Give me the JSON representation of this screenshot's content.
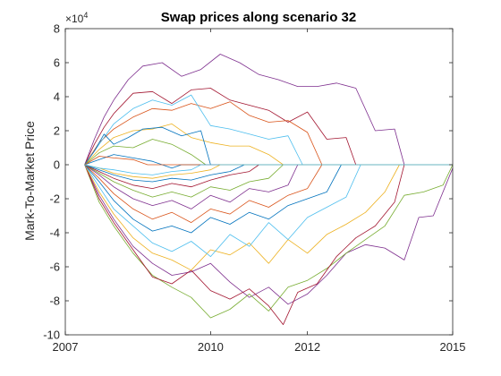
{
  "chart_data": {
    "type": "line",
    "title": "Swap prices along scenario 32",
    "xlabel": "",
    "ylabel": "Mark-To-Market Price",
    "y_exponent_label": "×10",
    "y_exponent_power": "4",
    "y_scale": 10000,
    "xlim": [
      2007,
      2015
    ],
    "ylim": [
      -10,
      8
    ],
    "x_ticks": [
      2007,
      2010,
      2012,
      2015
    ],
    "x_tick_labels": [
      "2007",
      "2010",
      "2012",
      "2015"
    ],
    "y_ticks": [
      -10,
      -8,
      -6,
      -4,
      -2,
      0,
      2,
      4,
      6,
      8
    ],
    "y_tick_labels": [
      "-10",
      "-8",
      "-6",
      "-4",
      "-2",
      "0",
      "2",
      "4",
      "6",
      "8"
    ],
    "grid": false,
    "legend": "none",
    "series": [
      {
        "color": "#7E2F8E",
        "x": [
          2007.4,
          2007.6,
          2007.8,
          2008.0,
          2008.3,
          2008.6,
          2009.0,
          2009.4,
          2009.8,
          2010.2,
          2010.6,
          2011.0,
          2011.4,
          2011.8,
          2012.2,
          2012.6,
          2013.0,
          2013.4,
          2013.8,
          2014.0,
          2014.5,
          2015.0
        ],
        "values": [
          0,
          1.5,
          2.8,
          3.8,
          5.0,
          5.8,
          6.0,
          5.2,
          5.6,
          6.5,
          6.0,
          5.3,
          5.0,
          4.6,
          4.6,
          4.8,
          4.5,
          2.0,
          2.1,
          0,
          0,
          0
        ]
      },
      {
        "color": "#A2142F",
        "x": [
          2007.4,
          2007.6,
          2007.8,
          2008.0,
          2008.4,
          2008.8,
          2009.2,
          2009.6,
          2010.0,
          2010.4,
          2010.8,
          2011.2,
          2011.6,
          2012.0,
          2012.4,
          2012.8,
          2013.0,
          2015.0
        ],
        "values": [
          0,
          1.2,
          2.2,
          3.0,
          4.2,
          4.3,
          3.6,
          4.4,
          4.5,
          3.8,
          3.5,
          3.2,
          2.5,
          3.1,
          1.5,
          1.6,
          0,
          0
        ]
      },
      {
        "color": "#D95319",
        "x": [
          2007.4,
          2007.7,
          2008.0,
          2008.4,
          2008.8,
          2009.2,
          2009.6,
          2010.0,
          2010.4,
          2010.8,
          2011.2,
          2011.6,
          2012.0,
          2012.3,
          2015.0
        ],
        "values": [
          0,
          1.3,
          2.1,
          2.8,
          3.3,
          3.2,
          3.6,
          3.3,
          3.7,
          2.9,
          2.5,
          2.6,
          1.9,
          0,
          0
        ]
      },
      {
        "color": "#4DBEEE",
        "x": [
          2007.4,
          2007.7,
          2008.0,
          2008.4,
          2008.8,
          2009.2,
          2009.6,
          2010.0,
          2010.4,
          2010.8,
          2011.2,
          2011.6,
          2011.9,
          2015.0
        ],
        "values": [
          0,
          1.2,
          2.4,
          3.3,
          3.8,
          3.5,
          4.1,
          2.3,
          2.1,
          1.8,
          1.5,
          1.7,
          0,
          0
        ]
      },
      {
        "color": "#EDB120",
        "x": [
          2007.4,
          2007.7,
          2008.0,
          2008.4,
          2008.8,
          2009.2,
          2009.6,
          2010.0,
          2010.4,
          2010.8,
          2011.2,
          2011.5,
          2015.0
        ],
        "values": [
          0,
          0.9,
          1.6,
          2.0,
          2.1,
          2.4,
          1.6,
          1.3,
          1.1,
          1.1,
          0.6,
          0,
          0
        ]
      },
      {
        "color": "#0072BD",
        "x": [
          2007.4,
          2007.6,
          2007.8,
          2008.0,
          2008.3,
          2008.6,
          2009.0,
          2009.4,
          2009.8,
          2010.0,
          2015.0
        ],
        "values": [
          0,
          0.8,
          1.8,
          1.2,
          1.6,
          2.1,
          2.2,
          1.7,
          2.0,
          0,
          0
        ]
      },
      {
        "color": "#77AC30",
        "x": [
          2007.4,
          2007.7,
          2008.0,
          2008.4,
          2008.8,
          2009.2,
          2009.6,
          2009.9,
          2015.0
        ],
        "values": [
          0,
          0.7,
          1.1,
          1.0,
          1.5,
          1.2,
          0.6,
          0,
          0
        ]
      },
      {
        "color": "#0072BD",
        "x": [
          2007.4,
          2007.7,
          2008.0,
          2008.4,
          2008.8,
          2009.2,
          2009.4,
          2015.0
        ],
        "values": [
          0,
          0.3,
          0.6,
          0.4,
          0.2,
          -0.2,
          0,
          0
        ]
      },
      {
        "color": "#D95319",
        "x": [
          2007.4,
          2007.7,
          2008.0,
          2008.4,
          2008.7,
          2015.0
        ],
        "values": [
          0,
          0.5,
          0.4,
          0.3,
          0,
          0
        ]
      },
      {
        "color": "#7E2F8E",
        "x": [
          2007.4,
          2007.7,
          2008.0,
          2008.4,
          2008.8,
          2009.2,
          2009.6,
          2010.0,
          2010.4,
          2010.8,
          2011.2,
          2011.6,
          2012.0,
          2012.4,
          2012.8,
          2013.2,
          2013.6,
          2014.0,
          2014.3,
          2014.6,
          2015.0
        ],
        "values": [
          0,
          -1.8,
          -3.2,
          -4.8,
          -5.8,
          -6.5,
          -6.3,
          -5.8,
          -6.9,
          -7.8,
          -7.2,
          -8.2,
          -7.6,
          -6.5,
          -5.2,
          -4.7,
          -4.9,
          -5.6,
          -3.1,
          -3.0,
          -0.2
        ]
      },
      {
        "color": "#77AC30",
        "x": [
          2007.4,
          2007.7,
          2008.0,
          2008.4,
          2008.8,
          2009.2,
          2009.6,
          2010.0,
          2010.4,
          2010.8,
          2011.2,
          2011.6,
          2012.0,
          2012.4,
          2012.8,
          2013.2,
          2013.6,
          2014.0,
          2014.4,
          2014.8,
          2015.0
        ],
        "values": [
          0,
          -2.2,
          -3.6,
          -5.2,
          -6.5,
          -7.2,
          -7.8,
          -9.0,
          -8.5,
          -7.6,
          -8.6,
          -7.2,
          -6.8,
          -6.1,
          -5.2,
          -4.4,
          -3.6,
          -1.8,
          -1.6,
          -1.2,
          0
        ]
      },
      {
        "color": "#A2142F",
        "x": [
          2007.4,
          2007.7,
          2008.0,
          2008.4,
          2008.8,
          2009.2,
          2009.6,
          2010.0,
          2010.4,
          2010.8,
          2011.2,
          2011.5,
          2011.8,
          2012.2,
          2012.6,
          2013.0,
          2013.4,
          2013.8,
          2014.0,
          2015.0
        ],
        "values": [
          0,
          -2.0,
          -3.4,
          -5.0,
          -6.6,
          -7.0,
          -6.2,
          -7.4,
          -7.9,
          -7.3,
          -8.3,
          -9.4,
          -7.5,
          -7.0,
          -5.4,
          -4.3,
          -3.6,
          -2.2,
          0,
          0
        ]
      },
      {
        "color": "#EDB120",
        "x": [
          2007.4,
          2007.7,
          2008.0,
          2008.4,
          2008.8,
          2009.2,
          2009.6,
          2010.0,
          2010.4,
          2010.8,
          2011.2,
          2011.6,
          2012.0,
          2012.4,
          2012.8,
          2013.2,
          2013.6,
          2013.9,
          2015.0
        ],
        "values": [
          0,
          -1.6,
          -2.9,
          -4.3,
          -5.2,
          -5.6,
          -6.2,
          -5.0,
          -5.3,
          -4.6,
          -5.8,
          -4.4,
          -5.2,
          -4.1,
          -3.5,
          -2.8,
          -1.6,
          0,
          0
        ]
      },
      {
        "color": "#4DBEEE",
        "x": [
          2007.4,
          2007.7,
          2008.0,
          2008.4,
          2008.8,
          2009.2,
          2009.6,
          2010.0,
          2010.4,
          2010.8,
          2011.2,
          2011.6,
          2012.0,
          2012.4,
          2012.8,
          2013.1,
          2015.0
        ],
        "values": [
          0,
          -1.3,
          -2.6,
          -3.6,
          -4.6,
          -5.1,
          -4.5,
          -5.4,
          -4.1,
          -4.8,
          -3.4,
          -4.4,
          -3.1,
          -2.5,
          -1.9,
          0,
          0
        ]
      },
      {
        "color": "#0072BD",
        "x": [
          2007.4,
          2007.7,
          2008.0,
          2008.4,
          2008.8,
          2009.2,
          2009.6,
          2010.0,
          2010.4,
          2010.8,
          2011.2,
          2011.6,
          2012.0,
          2012.4,
          2012.7,
          2015.0
        ],
        "values": [
          0,
          -1.0,
          -2.1,
          -3.2,
          -3.9,
          -3.6,
          -4.0,
          -3.1,
          -3.5,
          -2.8,
          -3.2,
          -2.4,
          -2.0,
          -1.6,
          0,
          0
        ]
      },
      {
        "color": "#D95319",
        "x": [
          2007.4,
          2007.7,
          2008.0,
          2008.4,
          2008.8,
          2009.2,
          2009.6,
          2010.0,
          2010.4,
          2010.8,
          2011.2,
          2011.6,
          2012.0,
          2012.3,
          2015.0
        ],
        "values": [
          0,
          -0.8,
          -1.7,
          -2.6,
          -3.2,
          -2.8,
          -3.4,
          -2.6,
          -2.9,
          -2.1,
          -2.5,
          -1.8,
          -1.4,
          0,
          0
        ]
      },
      {
        "color": "#7E2F8E",
        "x": [
          2007.4,
          2007.7,
          2008.0,
          2008.4,
          2008.8,
          2009.2,
          2009.6,
          2010.0,
          2010.4,
          2010.8,
          2011.2,
          2011.6,
          2011.8,
          2015.0
        ],
        "values": [
          0,
          -0.6,
          -1.3,
          -2.0,
          -2.4,
          -2.1,
          -2.6,
          -1.8,
          -2.2,
          -1.4,
          -1.6,
          -1.2,
          0,
          0
        ]
      },
      {
        "color": "#77AC30",
        "x": [
          2007.4,
          2007.7,
          2008.0,
          2008.4,
          2008.8,
          2009.2,
          2009.6,
          2010.0,
          2010.4,
          2010.8,
          2011.2,
          2011.5,
          2015.0
        ],
        "values": [
          0,
          -0.5,
          -1.0,
          -1.5,
          -1.9,
          -1.6,
          -1.9,
          -1.3,
          -1.5,
          -1.0,
          -0.8,
          0,
          0
        ]
      },
      {
        "color": "#A2142F",
        "x": [
          2007.4,
          2007.7,
          2008.0,
          2008.4,
          2008.8,
          2009.2,
          2009.6,
          2010.0,
          2010.4,
          2010.8,
          2011.0,
          2015.0
        ],
        "values": [
          0,
          -0.4,
          -0.8,
          -1.2,
          -1.4,
          -1.1,
          -1.3,
          -0.9,
          -0.6,
          -0.4,
          0,
          0
        ]
      },
      {
        "color": "#0072BD",
        "x": [
          2007.4,
          2007.7,
          2008.0,
          2008.4,
          2008.8,
          2009.2,
          2009.6,
          2010.0,
          2010.4,
          2010.7,
          2015.0
        ],
        "values": [
          0,
          -0.3,
          -0.6,
          -0.9,
          -1.0,
          -0.8,
          -0.9,
          -0.6,
          -0.4,
          0,
          0
        ]
      },
      {
        "color": "#EDB120",
        "x": [
          2007.4,
          2007.7,
          2008.0,
          2008.4,
          2008.8,
          2009.2,
          2009.6,
          2010.0,
          2010.2,
          2015.0
        ],
        "values": [
          0,
          -0.2,
          -0.5,
          -0.7,
          -0.8,
          -0.6,
          -0.5,
          -0.3,
          0,
          0
        ]
      },
      {
        "color": "#4DBEEE",
        "x": [
          2007.4,
          2007.7,
          2008.0,
          2008.4,
          2008.8,
          2009.2,
          2009.6,
          2009.8,
          2015.0
        ],
        "values": [
          0,
          -0.2,
          -0.3,
          -0.5,
          -0.6,
          -0.4,
          -0.3,
          0,
          0
        ]
      }
    ]
  }
}
